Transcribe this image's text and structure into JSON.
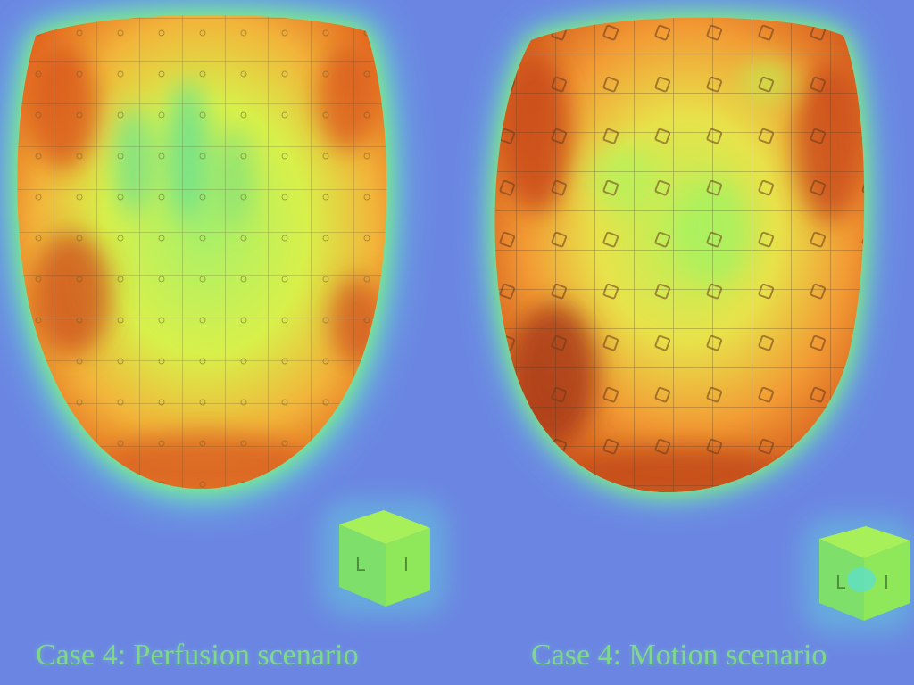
{
  "panels": [
    {
      "caption": "Case 4: Perfusion scenario",
      "cube_letters": [
        "L",
        "I"
      ],
      "marker_style": "small-circles"
    },
    {
      "caption": "Case 4: Motion scenario",
      "cube_letters": [
        "L",
        "I"
      ],
      "marker_style": "square-markers"
    }
  ],
  "colors": {
    "background": "#6b86e2",
    "halo_cyan": "#5ff0d8",
    "halo_green": "#8df25a",
    "core_yellow": "#d8f04a",
    "hot_orange": "#f08a2a",
    "hot_red": "#c94418",
    "caption_green": "#7fd98a"
  }
}
